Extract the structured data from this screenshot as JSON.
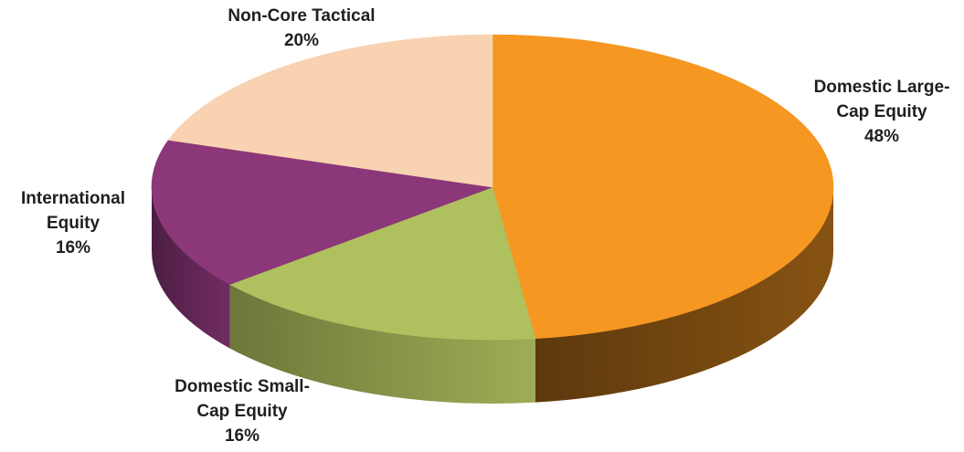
{
  "chart_data": {
    "type": "pie",
    "title": "",
    "slices": [
      {
        "name_lines": [
          "Domestic Large-",
          "Cap Equity"
        ],
        "value": 48,
        "value_label": "48%",
        "color": "#F59721"
      },
      {
        "name_lines": [
          "Domestic Small-",
          "Cap Equity"
        ],
        "value": 16,
        "value_label": "16%",
        "color": "#AFC05E"
      },
      {
        "name_lines": [
          "International",
          "Equity"
        ],
        "value": 16,
        "value_label": "16%",
        "color": "#8B3779"
      },
      {
        "name_lines": [
          "Non-Core Tactical"
        ],
        "value": 20,
        "value_label": "20%",
        "color": "#F8D2B1"
      }
    ],
    "legend": false,
    "style": "3d"
  }
}
